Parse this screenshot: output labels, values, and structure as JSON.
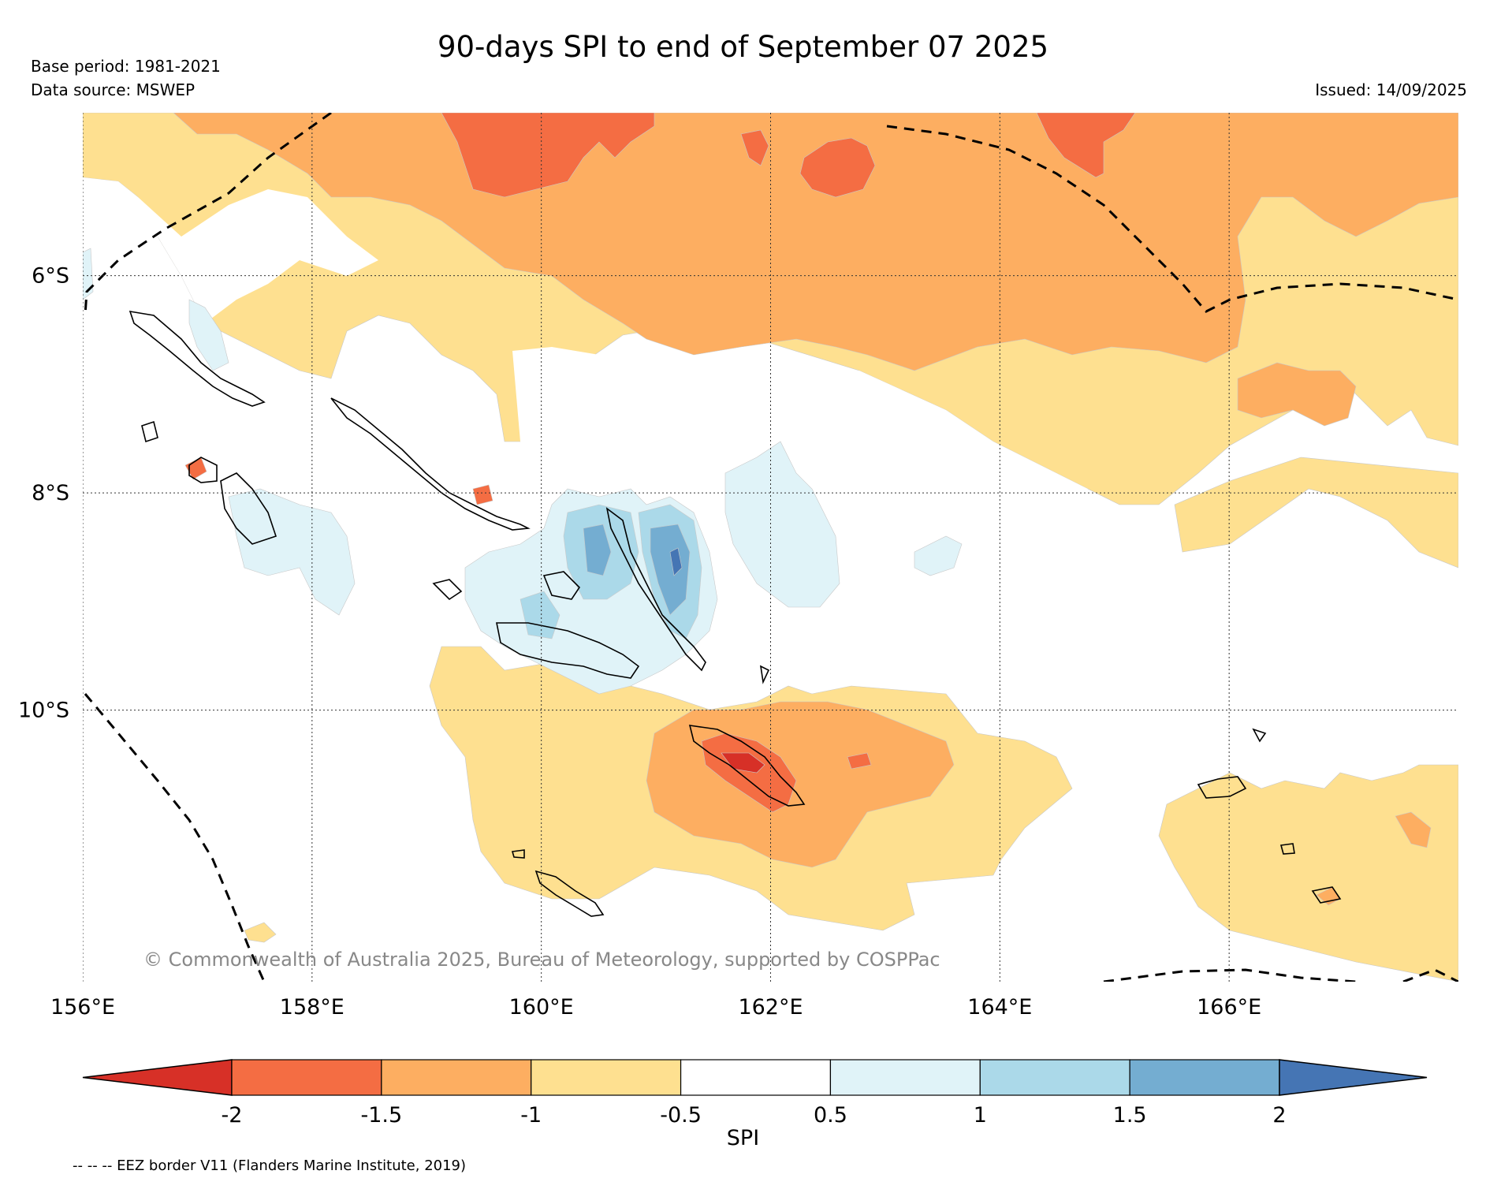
{
  "header": {
    "title": "90-days SPI to end of September 07 2025",
    "base_period": "Base period: 1981-2021",
    "data_source": "Data source: MSWEP",
    "issued": "Issued: 14/09/2025"
  },
  "map": {
    "lon_range": [
      156,
      168
    ],
    "lat_range": [
      -4.5,
      -12.5
    ],
    "lon_ticks": [
      {
        "value": 156,
        "label": "156°E"
      },
      {
        "value": 158,
        "label": "158°E"
      },
      {
        "value": 160,
        "label": "160°E"
      },
      {
        "value": 162,
        "label": "162°E"
      },
      {
        "value": 164,
        "label": "164°E"
      },
      {
        "value": 166,
        "label": "166°E"
      }
    ],
    "lat_ticks": [
      {
        "value": -6,
        "label": "6°S"
      },
      {
        "value": -8,
        "label": "8°S"
      },
      {
        "value": -10,
        "label": "10°S"
      }
    ],
    "copyright": "© Commonwealth of Australia 2025, Bureau of Meteorology, supported by COSPPac"
  },
  "colorbar": {
    "label": "SPI",
    "ticks": [
      "-2",
      "-1.5",
      "-1",
      "-0.5",
      "0.5",
      "1",
      "1.5",
      "2"
    ],
    "colors": {
      "lt_-2": "#d73027",
      "-2_-1.5": "#f46d43",
      "-1.5_-1": "#fdae61",
      "-1_-0.5": "#fee090",
      "-0.5_0.5": "#ffffff",
      "0.5_1": "#e0f3f8",
      "1_1.5": "#abd9e9",
      "1.5_2": "#74add1",
      "gt_2": "#4575b4"
    }
  },
  "footer": {
    "eez_note": "-- -- -- EEZ border V11 (Flanders Marine Institute, 2019)"
  }
}
